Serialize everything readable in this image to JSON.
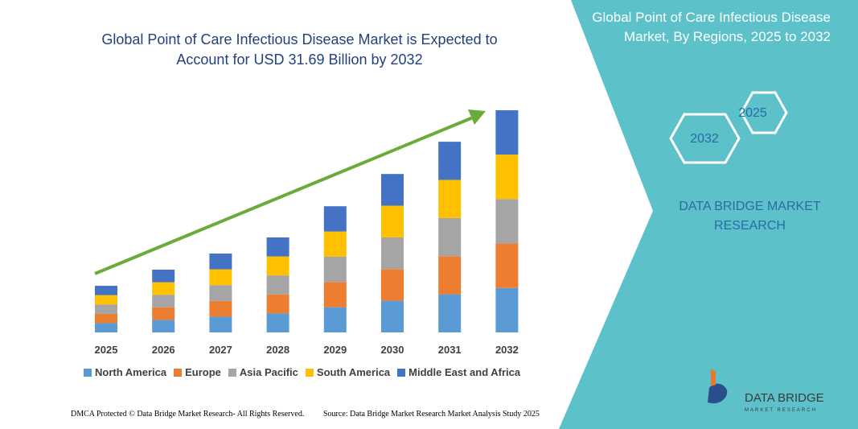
{
  "chart_data": {
    "type": "stacked-bar",
    "title": "Global Point of Care Infectious Disease Market is Expected to Account for USD 31.69 Billion by 2032",
    "categories": [
      "2025",
      "2026",
      "2027",
      "2028",
      "2029",
      "2030",
      "2031",
      "2032"
    ],
    "series": [
      {
        "name": "North America",
        "color": "#5b9bd5",
        "values": [
          1.33,
          1.79,
          2.25,
          2.71,
          3.6,
          4.52,
          5.44,
          6.34
        ]
      },
      {
        "name": "Europe",
        "color": "#ed7d31",
        "values": [
          1.33,
          1.79,
          2.25,
          2.71,
          3.6,
          4.52,
          5.44,
          6.34
        ]
      },
      {
        "name": "Asia Pacific",
        "color": "#a5a5a5",
        "values": [
          1.33,
          1.79,
          2.25,
          2.71,
          3.6,
          4.52,
          5.44,
          6.34
        ]
      },
      {
        "name": "South America",
        "color": "#ffc000",
        "values": [
          1.33,
          1.79,
          2.25,
          2.71,
          3.6,
          4.52,
          5.44,
          6.34
        ]
      },
      {
        "name": "Middle East and Africa",
        "color": "#4472c4",
        "values": [
          1.33,
          1.79,
          2.25,
          2.71,
          3.6,
          4.52,
          5.44,
          6.33
        ]
      }
    ]
  },
  "panel": {
    "title": "Global Point of Care Infectious Disease Market, By Regions, 2025 to 2032",
    "hex_start": "2025",
    "hex_end": "2032",
    "brand": "DATA BRIDGE MARKET RESEARCH"
  },
  "logo": {
    "name": "DATA BRIDGE",
    "tagline": "MARKET RESEARCH"
  },
  "footer": {
    "left": "DMCA Protected © Data Bridge Market Research- All Rights Reserved.",
    "right": "Source: Data Bridge Market Research  Market Analysis Study 2025"
  }
}
